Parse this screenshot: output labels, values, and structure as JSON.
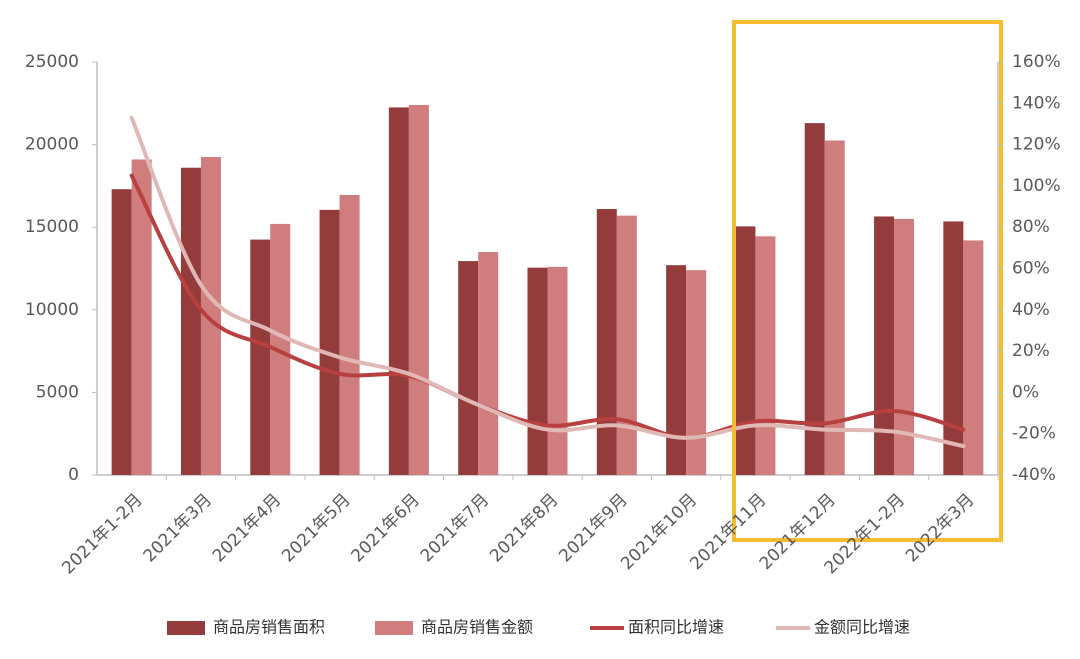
{
  "chart_data": {
    "type": "bar-line",
    "categories": [
      "2021年1-2月",
      "2021年3月",
      "2021年4月",
      "2021年5月",
      "2021年6月",
      "2021年7月",
      "2021年8月",
      "2021年9月",
      "2021年10月",
      "2021年11月",
      "2021年12月",
      "2022年1-2月",
      "2022年3月"
    ],
    "series": [
      {
        "name": "商品房销售面积",
        "type": "bar",
        "color": "#943b3c",
        "values": [
          17300,
          18600,
          14250,
          16050,
          22250,
          12950,
          12550,
          16100,
          12700,
          15050,
          21300,
          15650,
          15350
        ]
      },
      {
        "name": "商品房销售金额",
        "type": "bar",
        "color": "#d07e7d",
        "values": [
          19100,
          19250,
          15200,
          16950,
          22400,
          13500,
          12600,
          15700,
          12400,
          14450,
          20250,
          15500,
          14200
        ]
      },
      {
        "name": "面积同比增速",
        "type": "line",
        "axis": "y2",
        "color": "#b84040",
        "values": [
          105,
          40,
          22,
          9,
          8,
          -6,
          -16,
          -13,
          -22,
          -14,
          -15,
          -9,
          -18
        ]
      },
      {
        "name": "金额同比增速",
        "type": "line",
        "axis": "y2",
        "color": "#e0b9b7",
        "values": [
          133,
          52,
          30,
          17,
          9,
          -6,
          -18,
          -16,
          -22,
          -16,
          -18,
          -19,
          -26
        ]
      }
    ],
    "ylim": [
      0,
      25000
    ],
    "yticks": [
      0,
      5000,
      10000,
      15000,
      20000,
      25000
    ],
    "y2lim": [
      -40,
      160
    ],
    "y2ticks": [
      {
        "value": -40,
        "label": "-40%"
      },
      {
        "value": -20,
        "label": "-20%"
      },
      {
        "value": 0,
        "label": "0%"
      },
      {
        "value": 20,
        "label": "20%"
      },
      {
        "value": 40,
        "label": "40%"
      },
      {
        "value": 60,
        "label": "60%"
      },
      {
        "value": 80,
        "label": "80%"
      },
      {
        "value": 100,
        "label": "100%"
      },
      {
        "value": 120,
        "label": "120%"
      },
      {
        "value": 140,
        "label": "140%"
      },
      {
        "value": 160,
        "label": "160%"
      }
    ],
    "grid": false
  }
}
